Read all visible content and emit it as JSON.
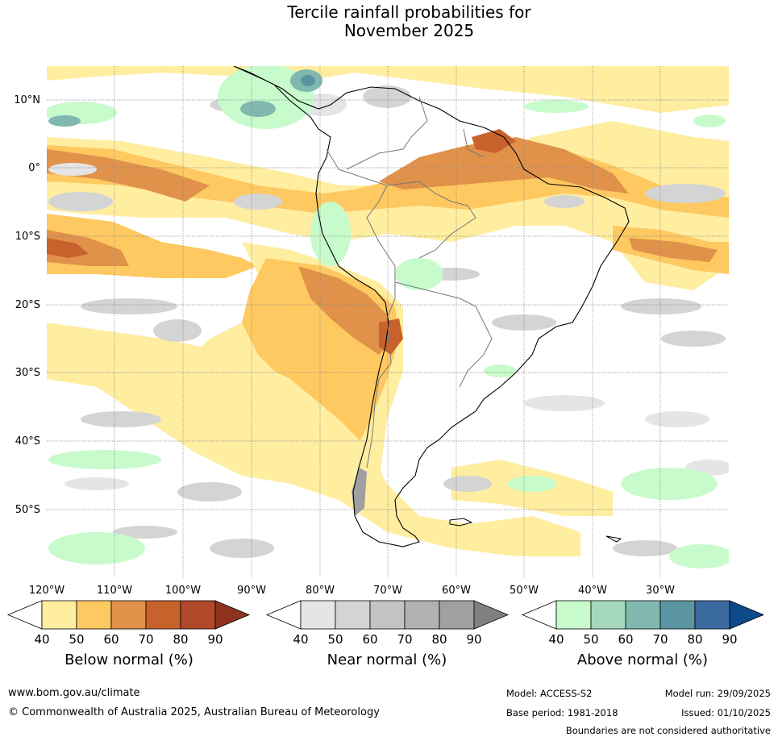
{
  "title": {
    "line1": "Tercile rainfall probabilities for",
    "line2": "November 2025"
  },
  "map": {
    "region": "South America",
    "lon_labels": [
      "120°W",
      "110°W",
      "100°W",
      "90°W",
      "80°W",
      "70°W",
      "60°W",
      "50°W",
      "40°W",
      "30°W"
    ],
    "lat_labels": [
      "10°N",
      "0°",
      "10°S",
      "20°S",
      "30°S",
      "40°S",
      "50°S"
    ]
  },
  "colorbars": {
    "below": {
      "label": "Below normal (%)",
      "ticks": [
        "40",
        "50",
        "60",
        "70",
        "80",
        "90"
      ],
      "colors": [
        "#ffffff",
        "#ffeda0",
        "#fec960",
        "#e0914a",
        "#c8622c",
        "#b0482a",
        "#8e3320"
      ]
    },
    "near": {
      "label": "Near normal (%)",
      "ticks": [
        "40",
        "50",
        "60",
        "70",
        "80",
        "90"
      ],
      "colors": [
        "#ffffff",
        "#e5e5e5",
        "#d4d4d4",
        "#c3c3c3",
        "#b1b1b1",
        "#a0a0a0",
        "#808080"
      ]
    },
    "above": {
      "label": "Above normal (%)",
      "ticks": [
        "40",
        "50",
        "60",
        "70",
        "80",
        "90"
      ],
      "colors": [
        "#ffffff",
        "#c7fbcc",
        "#a6d8bc",
        "#80b8b0",
        "#5b95a2",
        "#3a6aa0",
        "#0e4a88"
      ]
    }
  },
  "footer": {
    "website": "www.bom.gov.au/climate",
    "copyright": "© Commonwealth of Australia 2025, Australian Bureau of Meteorology",
    "model": "Model: ACCESS-S2",
    "base_period": "Base period: 1981-2018",
    "model_run": "Model run: 29/09/2025",
    "issued": "Issued: 01/10/2025",
    "disclaimer": "Boundaries are not considered authoritative"
  }
}
